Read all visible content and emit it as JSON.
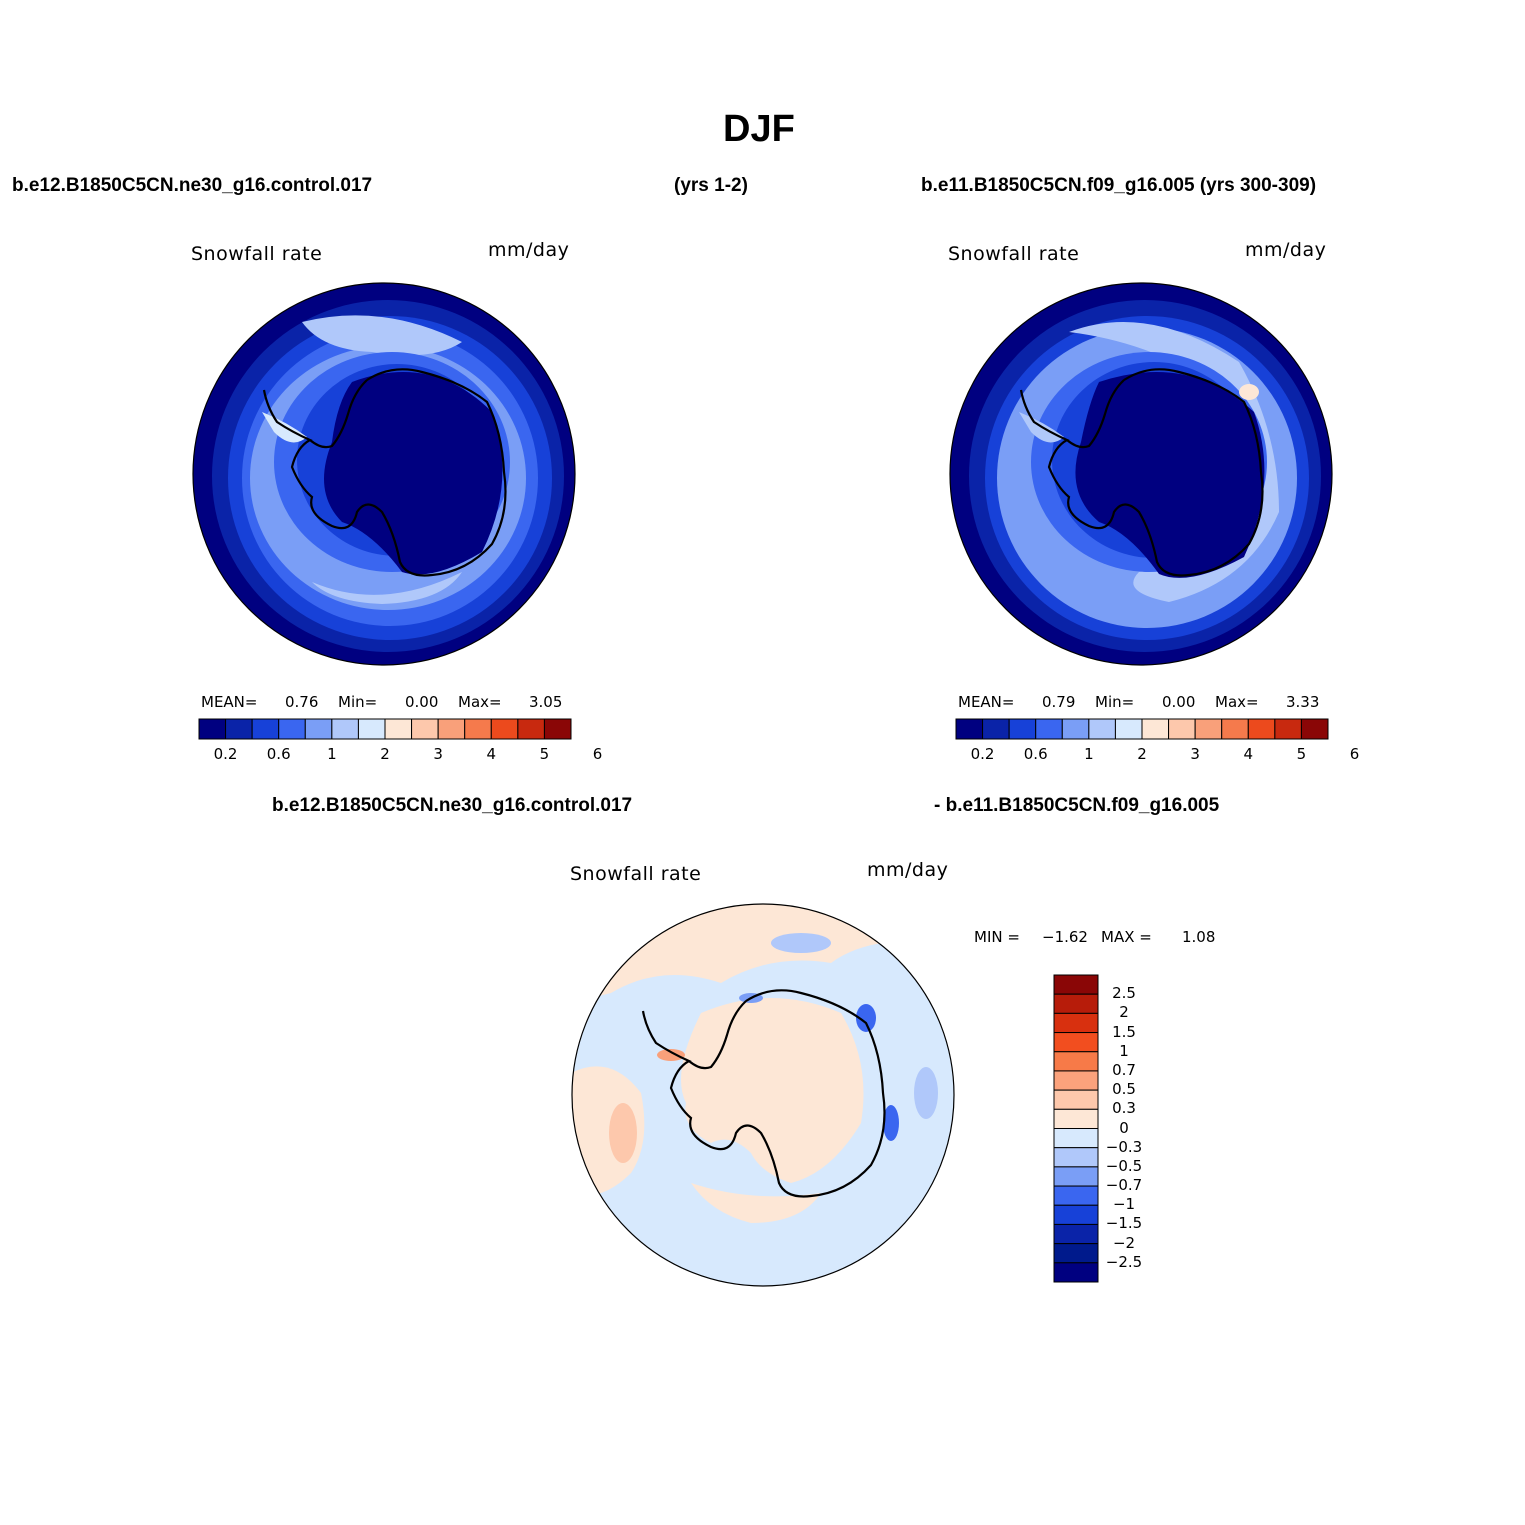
{
  "figure": {
    "title": "DJF",
    "case1_label": "b.e12.B1850C5CN.ne30_g16.control.017",
    "case1_years": "(yrs 1-2)",
    "case2_label": "b.e11.B1850C5CN.f09_g16.005 (yrs 300-309)",
    "diff_label_left": "b.e12.B1850C5CN.ne30_g16.control.017",
    "diff_label_right": "- b.e11.B1850C5CN.f09_g16.005"
  },
  "panels": [
    {
      "variable": "Snowfall rate",
      "units": "mm/day",
      "stats": {
        "mean_label": "MEAN=",
        "mean": "0.76",
        "min_label": "Min=",
        "min": "0.00",
        "max_label": "Max=",
        "max": "3.05"
      }
    },
    {
      "variable": "Snowfall rate",
      "units": "mm/day",
      "stats": {
        "mean_label": "MEAN=",
        "mean": "0.79",
        "min_label": "Min=",
        "min": "0.00",
        "max_label": "Max=",
        "max": "3.33"
      }
    },
    {
      "variable": "Snowfall rate",
      "units": "mm/day",
      "minmax": {
        "min_label": "MIN =",
        "min": "−1.62",
        "max_label": "MAX =",
        "max": "1.08"
      }
    }
  ],
  "chart_data": [
    {
      "type": "heatmap",
      "title": "Snowfall rate",
      "units": "mm/day",
      "projection": "south polar stereographic",
      "colorbar": {
        "orientation": "horizontal",
        "tick_labels": [
          "0.2",
          "0.6",
          "1",
          "2",
          "3",
          "4",
          "5",
          "6"
        ],
        "colors": [
          "#000080",
          "#0a23a8",
          "#1741d8",
          "#3a66f0",
          "#7a9ef6",
          "#b0c8fa",
          "#d7e9fd",
          "#fde7d6",
          "#fdc8ac",
          "#f9a07a",
          "#f57a4c",
          "#ec4a1d",
          "#c8290f",
          "#8a0606"
        ]
      },
      "stats": {
        "mean": 0.76,
        "min": 0.0,
        "max": 3.05
      }
    },
    {
      "type": "heatmap",
      "title": "Snowfall rate",
      "units": "mm/day",
      "projection": "south polar stereographic",
      "colorbar": {
        "orientation": "horizontal",
        "tick_labels": [
          "0.2",
          "0.6",
          "1",
          "2",
          "3",
          "4",
          "5",
          "6"
        ],
        "colors": [
          "#000080",
          "#0a23a8",
          "#1741d8",
          "#3a66f0",
          "#7a9ef6",
          "#b0c8fa",
          "#d7e9fd",
          "#fde7d6",
          "#fdc8ac",
          "#f9a07a",
          "#f57a4c",
          "#ec4a1d",
          "#c8290f",
          "#8a0606"
        ]
      },
      "stats": {
        "mean": 0.79,
        "min": 0.0,
        "max": 3.33
      }
    },
    {
      "type": "heatmap",
      "title": "Snowfall rate",
      "units": "mm/day",
      "projection": "south polar stereographic",
      "colorbar": {
        "orientation": "vertical",
        "tick_labels": [
          "2.5",
          "2",
          "1.5",
          "1",
          "0.7",
          "0.5",
          "0.3",
          "0",
          "−0.3",
          "−0.5",
          "−0.7",
          "−1",
          "−1.5",
          "−2",
          "−2.5"
        ],
        "colors": [
          "#8a0606",
          "#b71c0a",
          "#d8300f",
          "#f24e1f",
          "#f77a48",
          "#fba27c",
          "#fdc8ac",
          "#fde7d6",
          "#d7e9fd",
          "#b0c8fa",
          "#7a9ef6",
          "#3a66f0",
          "#1741d8",
          "#0a23a8",
          "#001a8c",
          "#000080"
        ]
      },
      "stats": {
        "min": -1.62,
        "max": 1.08
      }
    }
  ]
}
